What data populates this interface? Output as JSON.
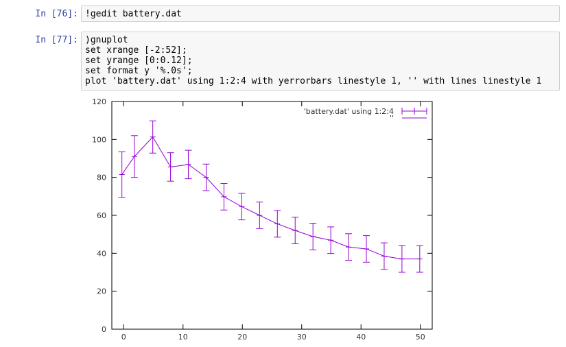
{
  "cells": [
    {
      "prompt": "In [76]:",
      "lines": [
        "!gedit battery.dat"
      ]
    },
    {
      "prompt": "In [77]:",
      "lines": [
        ")gnuplot",
        "set xrange [-2:52];",
        "set yrange [0:0.12];",
        "set format y '%.0s';",
        "plot 'battery.dat' using 1:2:4 with yerrorbars linestyle 1, '' with lines linestyle 1"
      ]
    }
  ],
  "chart_data": {
    "type": "line",
    "xlim": [
      -2,
      52
    ],
    "ylim": [
      0,
      120
    ],
    "xticks": [
      0,
      10,
      20,
      30,
      40,
      50
    ],
    "yticks": [
      0,
      20,
      40,
      60,
      80,
      100,
      120
    ],
    "series": [
      {
        "name": "'battery.dat' using 1:2:4",
        "style": "yerrorbars",
        "color": "#9400d3",
        "x": [
          -0.3,
          1.8,
          4.9,
          7.9,
          10.9,
          13.9,
          16.9,
          19.9,
          22.9,
          25.9,
          28.9,
          31.9,
          34.9,
          37.9,
          40.9,
          43.9,
          46.9,
          49.9
        ],
        "y": [
          81.5,
          91,
          101.3,
          85.5,
          86.8,
          80,
          69.8,
          64.6,
          60,
          55.5,
          52,
          48.8,
          46.9,
          43.3,
          42.3,
          38.5,
          37,
          37
        ],
        "err": [
          12,
          11,
          8.5,
          7.5,
          7.5,
          7,
          7,
          7,
          7,
          7,
          7,
          7,
          7,
          7,
          7,
          7,
          7,
          7
        ]
      },
      {
        "name": "''",
        "style": "lines",
        "color": "#9400d3"
      }
    ]
  }
}
